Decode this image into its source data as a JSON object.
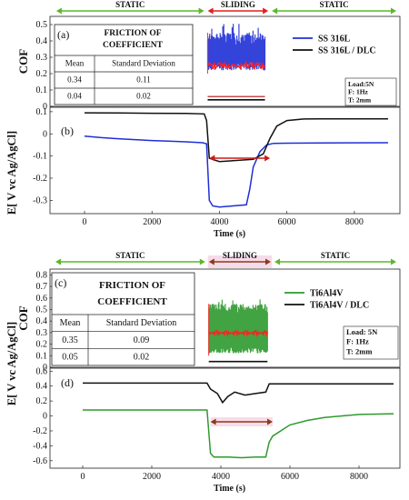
{
  "chart_data": [
    {
      "type": "line",
      "phases": [
        "STATIC",
        "SLIDING",
        "STATIC"
      ],
      "phase_ranges": [
        [
          -1000,
          3600
        ],
        [
          3600,
          5500
        ],
        [
          5500,
          9800
        ]
      ],
      "cof_panel": {
        "label": "(a)",
        "ylabel": "COF",
        "yticks": [
          "0.5",
          "0.4",
          "0.3",
          "0.2",
          "0.1",
          "0"
        ],
        "ylim": [
          0,
          0.55
        ],
        "series": [
          {
            "name": "SS 316L",
            "color": "#1f2fd6",
            "mean": 0.34,
            "band": [
              0.22,
              0.45
            ],
            "x_range": [
              3650,
              5350
            ]
          },
          {
            "name": "SS 316L / DLC",
            "color": "#111111",
            "mean": 0.04,
            "x_range": [
              3650,
              5350
            ]
          }
        ],
        "red_center_line": 0.25,
        "red_low_line": 0.06,
        "table": {
          "title": "FRICTION OF COEFFICIENT",
          "headers": [
            "Mean",
            "Standard Deviation"
          ],
          "rows": [
            [
              "0.34",
              "0.11"
            ],
            [
              "0.04",
              "0.02"
            ]
          ]
        },
        "test_params": [
          "Load:5N",
          "F: 1Hz",
          "T: 2mm"
        ]
      },
      "ocp_panel": {
        "label": "(b)",
        "ylabel": "E[ V vc Ag/AgCl]",
        "xlabel": "Time (s)",
        "xticks": [
          "0",
          "2000",
          "4000",
          "6000",
          "8000"
        ],
        "yticks": [
          "0.1",
          "0",
          "-0.1",
          "-0.2",
          "-0.3"
        ],
        "ylim": [
          -0.36,
          0.12
        ],
        "series": [
          {
            "name": "SS 316L",
            "color": "#1f2fd6",
            "x": [
              0,
              500,
              1000,
              1500,
              2000,
              2500,
              3000,
              3500,
              3620,
              3700,
              3800,
              4000,
              4400,
              4800,
              4900,
              5000,
              5200,
              5400,
              5600,
              6000,
              7000,
              9000
            ],
            "y": [
              -0.01,
              -0.017,
              -0.022,
              -0.026,
              -0.03,
              -0.033,
              -0.036,
              -0.04,
              -0.045,
              -0.3,
              -0.325,
              -0.33,
              -0.325,
              -0.32,
              -0.25,
              -0.15,
              -0.08,
              -0.05,
              -0.043,
              -0.042,
              -0.041,
              -0.04
            ]
          },
          {
            "name": "SS 316L / DLC",
            "color": "#111111",
            "x": [
              0,
              1000,
              2000,
              3000,
              3550,
              3620,
              3700,
              4000,
              4500,
              5000,
              5300,
              5500,
              5700,
              6000,
              6500,
              7000,
              8000,
              9000
            ],
            "y": [
              0.095,
              0.094,
              0.093,
              0.092,
              0.09,
              0.06,
              -0.11,
              -0.125,
              -0.12,
              -0.115,
              -0.09,
              -0.02,
              0.035,
              0.06,
              0.067,
              0.068,
              0.068,
              0.068
            ]
          }
        ]
      }
    },
    {
      "type": "line",
      "phases": [
        "STATIC",
        "SLIDING",
        "STATIC"
      ],
      "phase_ranges": [
        [
          -1000,
          3600
        ],
        [
          3600,
          5500
        ],
        [
          5500,
          9800
        ]
      ],
      "cof_panel": {
        "label": "(c)",
        "ylabel": "COF",
        "yticks": [
          "0.8",
          "0.7",
          "0.6",
          "0.5",
          "0.4",
          "0.3",
          "0.2",
          "0.1",
          "0"
        ],
        "ylim": [
          0,
          0.85
        ],
        "series": [
          {
            "name": "Ti6Al4V",
            "color": "#2e9a2e",
            "mean": 0.35,
            "band": [
              0.12,
              0.55
            ],
            "x_range": [
              3650,
              5350
            ]
          },
          {
            "name": "Ti6Al4V / DLC",
            "color": "#111111",
            "mean": 0.05,
            "x_range": [
              3650,
              5350
            ]
          }
        ],
        "red_center_line": 0.3,
        "table": {
          "title": "FRICTION OF COEFFICIENT",
          "headers": [
            "Mean",
            "Standard Deviation"
          ],
          "rows": [
            [
              "0.35",
              "0.09"
            ],
            [
              "0.05",
              "0.02"
            ]
          ]
        },
        "test_params": [
          "Load: 5N",
          "F: 1Hz",
          "T: 2mm"
        ]
      },
      "ocp_panel": {
        "label": "(d)",
        "ylabel": "E[ V vc Ag/AgCl]",
        "xlabel": "Time (s)",
        "xticks": [
          "0",
          "2000",
          "4000",
          "6000",
          "8000"
        ],
        "yticks": [
          "0.6",
          "0.4",
          "0.2",
          "0",
          "-0.2",
          "-0.4",
          "-0.6"
        ],
        "ylim": [
          -0.7,
          0.64
        ],
        "series": [
          {
            "name": "Ti6Al4V",
            "color": "#2e9a2e",
            "x": [
              0,
              1000,
              2000,
              3000,
              3600,
              3700,
              3800,
              4200,
              4600,
              5000,
              5300,
              5400,
              5500,
              6000,
              6500,
              7000,
              8000,
              9000
            ],
            "y": [
              0.08,
              0.08,
              0.08,
              0.08,
              0.08,
              -0.5,
              -0.55,
              -0.55,
              -0.56,
              -0.55,
              -0.55,
              -0.35,
              -0.27,
              -0.12,
              -0.06,
              -0.02,
              0.02,
              0.03
            ]
          },
          {
            "name": "Ti6Al4V / DLC",
            "color": "#111111",
            "x": [
              0,
              1000,
              2000,
              3000,
              3600,
              3700,
              3900,
              4050,
              4200,
              4400,
              4700,
              5000,
              5300,
              5400,
              6000,
              7000,
              8000,
              9000
            ],
            "y": [
              0.44,
              0.44,
              0.44,
              0.44,
              0.44,
              0.36,
              0.3,
              0.18,
              0.26,
              0.32,
              0.28,
              0.3,
              0.32,
              0.43,
              0.43,
              0.43,
              0.43,
              0.43
            ]
          }
        ]
      }
    }
  ]
}
